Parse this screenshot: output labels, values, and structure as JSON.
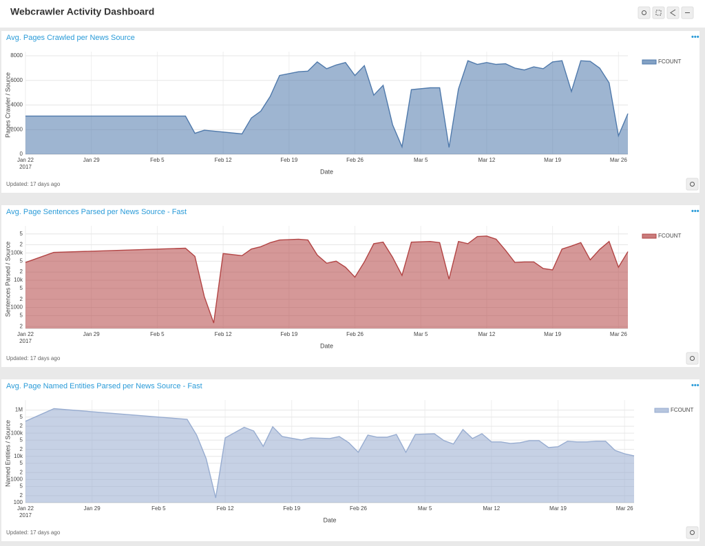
{
  "header": {
    "title": "Webcrawler Activity Dashboard"
  },
  "chart_data": [
    {
      "type": "area",
      "title": "Avg. Pages Crawled per News Source",
      "x_label": "Date",
      "y_label": "Pages Crawler / Source",
      "footer": "Updated: 17 days ago",
      "x_tick_year": "2017",
      "yscale": "linear",
      "grid": true,
      "legend": "right",
      "xlim": [
        "2017-01-22",
        "2017-03-27"
      ],
      "xticks": [
        {
          "value": "2017-01-22",
          "label": "Jan 22"
        },
        {
          "value": "2017-01-29",
          "label": "Jan 29"
        },
        {
          "value": "2017-02-05",
          "label": "Feb 5"
        },
        {
          "value": "2017-02-12",
          "label": "Feb 12"
        },
        {
          "value": "2017-02-19",
          "label": "Feb 19"
        },
        {
          "value": "2017-02-26",
          "label": "Feb 26"
        },
        {
          "value": "2017-03-05",
          "label": "Mar 5"
        },
        {
          "value": "2017-03-12",
          "label": "Mar 12"
        },
        {
          "value": "2017-03-19",
          "label": "Mar 19"
        },
        {
          "value": "2017-03-26",
          "label": "Mar 26"
        }
      ],
      "ylim": [
        0,
        8000
      ],
      "yticks": [
        0,
        2000,
        4000,
        6000,
        8000
      ],
      "x": [
        "2017-01-22",
        "2017-02-08",
        "2017-02-09",
        "2017-02-10",
        "2017-02-14",
        "2017-02-15",
        "2017-02-16",
        "2017-02-17",
        "2017-02-18",
        "2017-02-20",
        "2017-02-21",
        "2017-02-22",
        "2017-02-23",
        "2017-02-24",
        "2017-02-25",
        "2017-02-26",
        "2017-02-27",
        "2017-02-28",
        "2017-03-01",
        "2017-03-02",
        "2017-03-03",
        "2017-03-04",
        "2017-03-06",
        "2017-03-07",
        "2017-03-08",
        "2017-03-09",
        "2017-03-10",
        "2017-03-11",
        "2017-03-12",
        "2017-03-13",
        "2017-03-14",
        "2017-03-15",
        "2017-03-16",
        "2017-03-17",
        "2017-03-18",
        "2017-03-19",
        "2017-03-20",
        "2017-03-21",
        "2017-03-22",
        "2017-03-23",
        "2017-03-24",
        "2017-03-25",
        "2017-03-26",
        "2017-03-27"
      ],
      "series": [
        {
          "name": "FCOUNT",
          "color": "#4f79ab",
          "values": [
            3100,
            3100,
            1700,
            1950,
            1650,
            2950,
            3500,
            4700,
            6400,
            6700,
            6750,
            7500,
            6950,
            7250,
            7450,
            6400,
            7200,
            4800,
            5600,
            2400,
            600,
            5250,
            5400,
            5400,
            550,
            5300,
            7600,
            7300,
            7450,
            7300,
            7350,
            7000,
            6850,
            7100,
            6950,
            7500,
            7600,
            5100,
            7600,
            7550,
            7000,
            5800,
            1500,
            3300
          ]
        }
      ]
    },
    {
      "type": "area",
      "title": "Avg. Page Sentences Parsed per News Source - Fast",
      "x_label": "Date",
      "y_label": "Sentences Parsed / Source",
      "footer": "Updated: 17 days ago",
      "x_tick_year": "2017",
      "yscale": "log",
      "grid": true,
      "legend": "right",
      "xlim": [
        "2017-01-22",
        "2017-03-27"
      ],
      "xticks": [
        {
          "value": "2017-01-22",
          "label": "Jan 22"
        },
        {
          "value": "2017-01-29",
          "label": "Jan 29"
        },
        {
          "value": "2017-02-05",
          "label": "Feb 5"
        },
        {
          "value": "2017-02-12",
          "label": "Feb 12"
        },
        {
          "value": "2017-02-19",
          "label": "Feb 19"
        },
        {
          "value": "2017-02-26",
          "label": "Feb 26"
        },
        {
          "value": "2017-03-05",
          "label": "Mar 5"
        },
        {
          "value": "2017-03-12",
          "label": "Mar 12"
        },
        {
          "value": "2017-03-19",
          "label": "Mar 19"
        },
        {
          "value": "2017-03-26",
          "label": "Mar 26"
        }
      ],
      "ylim": [
        170,
        700000
      ],
      "yticks": [
        {
          "value": 200,
          "label": "2"
        },
        {
          "value": 500,
          "label": "5"
        },
        1000,
        {
          "value": 2000,
          "label": "2"
        },
        {
          "value": 5000,
          "label": "5"
        },
        {
          "value": 10000,
          "label": "10k"
        },
        {
          "value": 20000,
          "label": "2"
        },
        {
          "value": 50000,
          "label": "5"
        },
        {
          "value": 100000,
          "label": "100k"
        },
        {
          "value": 200000,
          "label": "2"
        },
        {
          "value": 500000,
          "label": "5"
        }
      ],
      "x": [
        "2017-01-22",
        "2017-01-25",
        "2017-02-08",
        "2017-02-09",
        "2017-02-10",
        "2017-02-11",
        "2017-02-12",
        "2017-02-14",
        "2017-02-15",
        "2017-02-16",
        "2017-02-17",
        "2017-02-18",
        "2017-02-20",
        "2017-02-21",
        "2017-02-22",
        "2017-02-23",
        "2017-02-24",
        "2017-02-25",
        "2017-02-26",
        "2017-02-27",
        "2017-02-28",
        "2017-03-01",
        "2017-03-02",
        "2017-03-03",
        "2017-03-04",
        "2017-03-06",
        "2017-03-07",
        "2017-03-08",
        "2017-03-09",
        "2017-03-10",
        "2017-03-11",
        "2017-03-12",
        "2017-03-13",
        "2017-03-14",
        "2017-03-15",
        "2017-03-16",
        "2017-03-17",
        "2017-03-18",
        "2017-03-19",
        "2017-03-20",
        "2017-03-21",
        "2017-03-22",
        "2017-03-23",
        "2017-03-24",
        "2017-03-25",
        "2017-03-26",
        "2017-03-27"
      ],
      "series": [
        {
          "name": "FCOUNT",
          "color": "#b24444",
          "values": [
            45000,
            105000,
            150000,
            75000,
            2500,
            270,
            95000,
            80000,
            140000,
            170000,
            240000,
            300000,
            320000,
            300000,
            84000,
            42000,
            50000,
            30000,
            13000,
            47000,
            220000,
            250000,
            70000,
            15000,
            250000,
            265000,
            240000,
            11000,
            265000,
            220000,
            400000,
            420000,
            320000,
            125000,
            45000,
            47000,
            47000,
            27000,
            24000,
            140000,
            180000,
            240000,
            56000,
            135000,
            265000,
            30000,
            112000
          ]
        }
      ]
    },
    {
      "type": "area",
      "title": "Avg. Page Named Entities Parsed per News Source - Fast",
      "x_label": "Date",
      "y_label": "Named Entities / Source",
      "footer": "Updated: 17 days ago",
      "x_tick_year": "2017",
      "yscale": "log",
      "grid": true,
      "legend": "right",
      "xlim": [
        "2017-01-22",
        "2017-03-27"
      ],
      "xticks": [
        {
          "value": "2017-01-22",
          "label": "Jan 22"
        },
        {
          "value": "2017-01-29",
          "label": "Jan 29"
        },
        {
          "value": "2017-02-05",
          "label": "Feb 5"
        },
        {
          "value": "2017-02-12",
          "label": "Feb 12"
        },
        {
          "value": "2017-02-19",
          "label": "Feb 19"
        },
        {
          "value": "2017-02-26",
          "label": "Feb 26"
        },
        {
          "value": "2017-03-05",
          "label": "Mar 5"
        },
        {
          "value": "2017-03-12",
          "label": "Mar 12"
        },
        {
          "value": "2017-03-19",
          "label": "Mar 19"
        },
        {
          "value": "2017-03-26",
          "label": "Mar 26"
        }
      ],
      "ylim": [
        100,
        1800000
      ],
      "yticks": [
        100,
        {
          "value": 200,
          "label": "2"
        },
        {
          "value": 500,
          "label": "5"
        },
        1000,
        {
          "value": 2000,
          "label": "2"
        },
        {
          "value": 5000,
          "label": "5"
        },
        {
          "value": 10000,
          "label": "10k"
        },
        {
          "value": 20000,
          "label": "2"
        },
        {
          "value": 50000,
          "label": "5"
        },
        {
          "value": 100000,
          "label": "100k"
        },
        {
          "value": 200000,
          "label": "2"
        },
        {
          "value": 500000,
          "label": "5"
        },
        {
          "value": 1000000,
          "label": "1M"
        }
      ],
      "x": [
        "2017-01-22",
        "2017-01-25",
        "2017-02-08",
        "2017-02-09",
        "2017-02-10",
        "2017-02-11",
        "2017-02-12",
        "2017-02-14",
        "2017-02-15",
        "2017-02-16",
        "2017-02-17",
        "2017-02-18",
        "2017-02-20",
        "2017-02-21",
        "2017-02-23",
        "2017-02-24",
        "2017-02-25",
        "2017-02-26",
        "2017-02-27",
        "2017-02-28",
        "2017-03-01",
        "2017-03-02",
        "2017-03-03",
        "2017-03-04",
        "2017-03-06",
        "2017-03-07",
        "2017-03-08",
        "2017-03-09",
        "2017-03-10",
        "2017-03-11",
        "2017-03-12",
        "2017-03-13",
        "2017-03-14",
        "2017-03-15",
        "2017-03-16",
        "2017-03-17",
        "2017-03-18",
        "2017-03-19",
        "2017-03-20",
        "2017-03-21",
        "2017-03-22",
        "2017-03-23",
        "2017-03-24",
        "2017-03-25",
        "2017-03-26",
        "2017-03-27"
      ],
      "series": [
        {
          "name": "FCOUNT",
          "color": "#97acd0",
          "values": [
            330000,
            1150000,
            400000,
            83000,
            8000,
            160,
            63000,
            180000,
            125000,
            27000,
            190000,
            72000,
            51000,
            63000,
            59000,
            72000,
            39000,
            15000,
            83000,
            67000,
            67000,
            89000,
            15000,
            89000,
            95000,
            48000,
            34000,
            145000,
            59000,
            95000,
            42000,
            42000,
            36000,
            39000,
            48000,
            48000,
            24000,
            26000,
            45000,
            42000,
            42000,
            45000,
            45000,
            18000,
            13000,
            10500
          ]
        }
      ]
    }
  ]
}
